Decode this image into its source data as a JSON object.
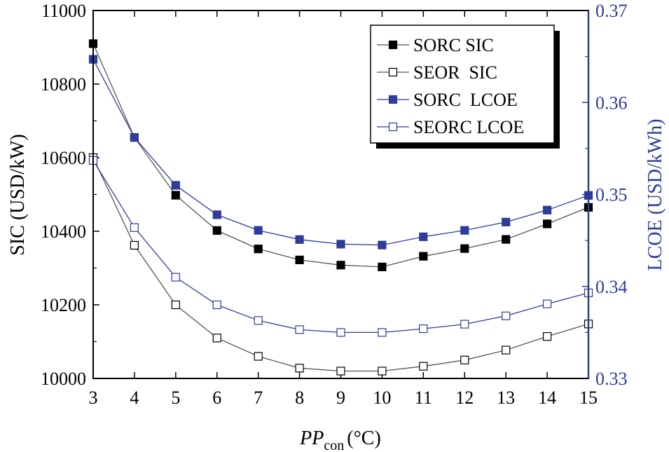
{
  "chart_data": {
    "type": "line",
    "title": "",
    "x": [
      3,
      4,
      5,
      6,
      7,
      8,
      9,
      10,
      11,
      12,
      13,
      14,
      15
    ],
    "xlabel": {
      "italic": "PP",
      "sub": "con",
      "unit": "(°C)"
    },
    "xlim": [
      3,
      15
    ],
    "xticks": [
      "3",
      "4",
      "5",
      "6",
      "7",
      "8",
      "9",
      "10",
      "11",
      "12",
      "13",
      "14",
      "15"
    ],
    "ylabel": "SIC (USD/kW)",
    "ylim": [
      10000,
      11000
    ],
    "yticks": [
      "10000",
      "10200",
      "10400",
      "10600",
      "10800",
      "11000"
    ],
    "y2label": "LCOE (USD/kWh)",
    "y2lim": [
      0.33,
      0.37
    ],
    "y2ticks": [
      "0.33",
      "0.34",
      "0.35",
      "0.36",
      "0.37"
    ],
    "legend_position": "top-right",
    "colors": {
      "black": "#000000",
      "blue": "#2e3d99",
      "gray_line": "#555555"
    },
    "series": [
      {
        "name": "SORC SIC",
        "axis": "left",
        "marker": "filled-square",
        "color": "#000000",
        "values": [
          10910,
          10655,
          10498,
          10402,
          10352,
          10322,
          10308,
          10303,
          10332,
          10353,
          10378,
          10420,
          10465
        ]
      },
      {
        "name": "SEOR  SIC",
        "axis": "left",
        "marker": "open-square",
        "color": "#000000",
        "values": [
          10600,
          10362,
          10200,
          10110,
          10060,
          10028,
          10020,
          10020,
          10033,
          10050,
          10077,
          10114,
          10148
        ]
      },
      {
        "name": "SORC  LCOE",
        "axis": "right",
        "marker": "filled-square",
        "color": "#2e3d99",
        "values": [
          0.3647,
          0.3562,
          0.351,
          0.3478,
          0.3461,
          0.3451,
          0.3446,
          0.3445,
          0.3454,
          0.3461,
          0.347,
          0.3483,
          0.3499
        ]
      },
      {
        "name": "SEORC LCOE",
        "axis": "right",
        "marker": "open-square",
        "color": "#2e3d99",
        "values": [
          0.3537,
          0.3464,
          0.341,
          0.338,
          0.3363,
          0.3353,
          0.335,
          0.335,
          0.3354,
          0.3359,
          0.3368,
          0.3381,
          0.3393
        ]
      }
    ]
  }
}
